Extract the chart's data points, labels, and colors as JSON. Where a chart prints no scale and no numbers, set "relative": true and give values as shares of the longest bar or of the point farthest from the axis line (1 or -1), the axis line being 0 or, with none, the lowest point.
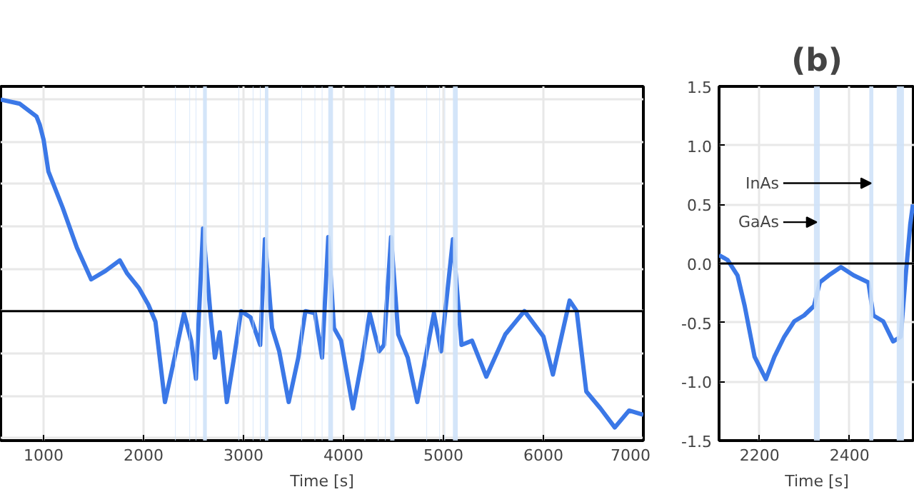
{
  "chart_data": [
    {
      "type": "line",
      "relative": true,
      "xlabel": "Time [s]",
      "xlim": [
        571,
        7000
      ],
      "xticks": [
        1000,
        2000,
        3000,
        4000,
        5000,
        6000,
        7000
      ],
      "grid": true,
      "tick_labels": "x",
      "x": [
        571,
        762,
        929,
        962,
        1000,
        1048,
        1190,
        1333,
        1476,
        1619,
        1762,
        1833,
        1952,
        2048,
        2119,
        2214,
        2310,
        2405,
        2476,
        2524,
        2595,
        2667,
        2714,
        2762,
        2833,
        2905,
        2976,
        3071,
        3167,
        3214,
        3286,
        3357,
        3452,
        3548,
        3619,
        3714,
        3786,
        3848,
        3905,
        3976,
        4095,
        4190,
        4262,
        4357,
        4405,
        4476,
        4548,
        4643,
        4738,
        4833,
        4905,
        4976,
        5095,
        5181,
        5286,
        5429,
        5619,
        5810,
        6000,
        6095,
        6262,
        6333,
        6429,
        6571,
        6714,
        6857,
        7000
      ],
      "series": [
        {
          "color": "#3b78e7",
          "values": [
            1.0,
            0.98,
            0.92,
            0.88,
            0.81,
            0.66,
            0.49,
            0.3,
            0.15,
            0.19,
            0.24,
            0.18,
            0.11,
            0.03,
            -0.05,
            -0.43,
            -0.22,
            -0.01,
            -0.14,
            -0.32,
            0.39,
            0.0,
            -0.22,
            -0.1,
            -0.43,
            -0.22,
            0.0,
            -0.03,
            -0.16,
            0.34,
            -0.08,
            -0.19,
            -0.43,
            -0.22,
            0.0,
            -0.01,
            -0.22,
            0.35,
            -0.08,
            -0.14,
            -0.46,
            -0.22,
            -0.01,
            -0.19,
            -0.16,
            0.35,
            -0.11,
            -0.22,
            -0.43,
            -0.19,
            -0.01,
            -0.19,
            0.34,
            -0.16,
            -0.14,
            -0.31,
            -0.11,
            0.0,
            -0.12,
            -0.3,
            0.05,
            0.0,
            -0.38,
            -0.46,
            -0.55,
            -0.47,
            -0.49
          ]
        }
      ],
      "ref_lines": [
        {
          "axis": "y",
          "value": 0,
          "color": "#000000"
        }
      ],
      "bands": [
        {
          "axis": "x",
          "from": 2316,
          "to": 2322,
          "color": "#cfe2f8"
        },
        {
          "axis": "x",
          "from": 2459,
          "to": 2465,
          "color": "#cfe2f8"
        },
        {
          "axis": "x",
          "from": 2521,
          "to": 2527,
          "color": "#cfe2f8"
        },
        {
          "axis": "x",
          "from": 2595,
          "to": 2633,
          "color": "#cfe2f8"
        },
        {
          "axis": "x",
          "from": 2949,
          "to": 2955,
          "color": "#cfe2f8"
        },
        {
          "axis": "x",
          "from": 3092,
          "to": 3098,
          "color": "#cfe2f8"
        },
        {
          "axis": "x",
          "from": 3164,
          "to": 3170,
          "color": "#cfe2f8"
        },
        {
          "axis": "x",
          "from": 3214,
          "to": 3248,
          "color": "#cfe2f8"
        },
        {
          "axis": "x",
          "from": 3578,
          "to": 3584,
          "color": "#cfe2f8"
        },
        {
          "axis": "x",
          "from": 3711,
          "to": 3717,
          "color": "#cfe2f8"
        },
        {
          "axis": "x",
          "from": 3783,
          "to": 3789,
          "color": "#cfe2f8"
        },
        {
          "axis": "x",
          "from": 3848,
          "to": 3895,
          "color": "#cfe2f8"
        },
        {
          "axis": "x",
          "from": 4211,
          "to": 4217,
          "color": "#cfe2f8"
        },
        {
          "axis": "x",
          "from": 4345,
          "to": 4351,
          "color": "#cfe2f8"
        },
        {
          "axis": "x",
          "from": 4416,
          "to": 4422,
          "color": "#cfe2f8"
        },
        {
          "axis": "x",
          "from": 4467,
          "to": 4510,
          "color": "#cfe2f8"
        },
        {
          "axis": "x",
          "from": 4830,
          "to": 4836,
          "color": "#cfe2f8"
        },
        {
          "axis": "x",
          "from": 4959,
          "to": 4965,
          "color": "#cfe2f8"
        },
        {
          "axis": "x",
          "from": 5011,
          "to": 5017,
          "color": "#cfe2f8"
        },
        {
          "axis": "x",
          "from": 5095,
          "to": 5143,
          "color": "#cfe2f8"
        }
      ]
    },
    {
      "type": "line",
      "title": "(b)",
      "xlabel": "Time [s]",
      "xlim": [
        2110,
        2545
      ],
      "xticks": [
        2200,
        2400
      ],
      "ylim": [
        -1.5,
        1.5
      ],
      "yticks": [
        {
          "value": -1.5,
          "label": "-1.5"
        },
        {
          "value": -1.0,
          "label": "-1.0"
        },
        {
          "value": -0.5,
          "label": "-0.5"
        },
        {
          "value": 0,
          "label": "0.0"
        },
        {
          "value": 0.5,
          "label": "0.5"
        },
        {
          "value": 1.0,
          "label": "1.0"
        },
        {
          "value": 1.5,
          "label": "1.5"
        }
      ],
      "grid": true,
      "x": [
        2110,
        2129,
        2151,
        2167,
        2189,
        2214,
        2233,
        2255,
        2277,
        2299,
        2321,
        2334,
        2354,
        2381,
        2409,
        2442,
        2453,
        2475,
        2497,
        2514,
        2525,
        2535,
        2541
      ],
      "series": [
        {
          "color": "#3b78e7",
          "values": [
            0.07,
            0.03,
            -0.1,
            -0.36,
            -0.79,
            -0.98,
            -0.79,
            -0.62,
            -0.49,
            -0.44,
            -0.36,
            -0.16,
            -0.1,
            -0.03,
            -0.1,
            -0.16,
            -0.44,
            -0.49,
            -0.66,
            -0.62,
            -0.1,
            0.33,
            0.5
          ]
        }
      ],
      "ref_lines": [
        {
          "axis": "y",
          "value": 0,
          "color": "#000000"
        }
      ],
      "bands": [
        {
          "axis": "x",
          "from": 2321,
          "to": 2334,
          "color": "#cfe2f8"
        },
        {
          "axis": "x",
          "from": 2444,
          "to": 2453,
          "color": "#cfe2f8"
        },
        {
          "axis": "x",
          "from": 2505,
          "to": 2521,
          "color": "#cfe2f8"
        }
      ],
      "annotations": [
        {
          "text": "InAs",
          "x": 2448,
          "y": 0.68
        },
        {
          "text": "GaAs",
          "x": 2327,
          "y": 0.35
        }
      ]
    }
  ]
}
